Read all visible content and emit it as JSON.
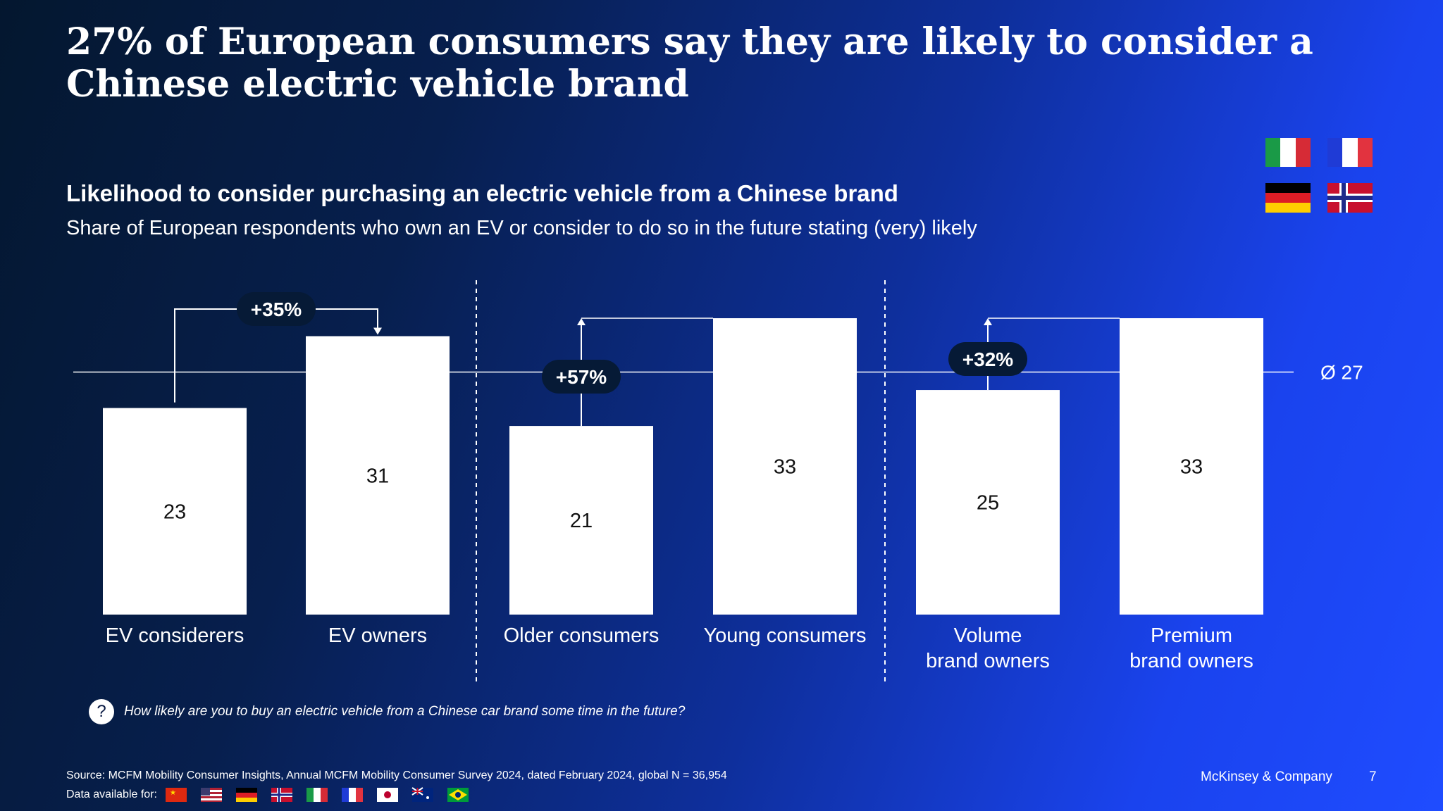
{
  "title": "27% of European consumers say they are likely to consider a Chinese electric vehicle brand",
  "subtitle": "Likelihood to consider purchasing an electric vehicle from a Chinese brand",
  "description": "Share of European respondents who own an EV or consider to do so in the future stating (very) likely",
  "legend_flags": [
    "Italy",
    "France",
    "Germany",
    "Norway"
  ],
  "question": "How likely are you to buy an electric vehicle from a Chinese car brand some time in the future?",
  "question_icon": "?",
  "source": "Source: MCFM Mobility Consumer Insights, Annual MCFM Mobility Consumer Survey 2024, dated February 2024, global N = 36,954",
  "data_available_label": "Data available for:",
  "data_available_flags": [
    "China",
    "United States",
    "Germany",
    "Norway",
    "Italy",
    "France",
    "Japan",
    "Australia",
    "Brazil"
  ],
  "company": "McKinsey & Company",
  "page_number": "7",
  "chart_data": {
    "type": "bar",
    "categories": [
      "EV considerers",
      "EV owners",
      "Older consumers",
      "Young consumers",
      "Volume brand owners",
      "Premium brand owners"
    ],
    "category_lines": [
      [
        "EV considerers"
      ],
      [
        "EV owners"
      ],
      [
        "Older consumers"
      ],
      [
        "Young consumers"
      ],
      [
        "Volume",
        "brand owners"
      ],
      [
        "Premium",
        "brand owners"
      ]
    ],
    "values": [
      23,
      31,
      21,
      33,
      25,
      33
    ],
    "ylim": [
      0,
      33
    ],
    "average": {
      "value": 27,
      "label": "Ø 27"
    },
    "comparisons": [
      {
        "from": 0,
        "to": 1,
        "label": "+35%"
      },
      {
        "from": 2,
        "to": 3,
        "label": "+57%"
      },
      {
        "from": 4,
        "to": 5,
        "label": "+32%"
      }
    ],
    "bar_color": "#ffffff",
    "pill_color": "#061a36"
  }
}
